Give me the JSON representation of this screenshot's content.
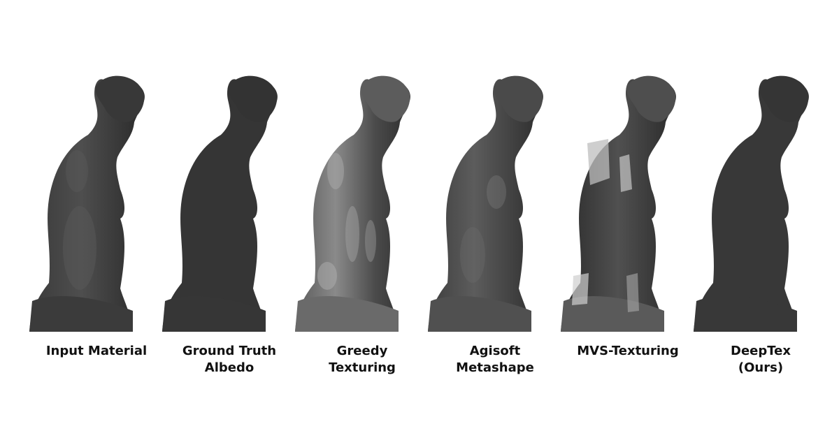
{
  "figure": {
    "panels": [
      {
        "caption_line1": "Input Material",
        "caption_line2": "",
        "style": "smooth-shaded"
      },
      {
        "caption_line1": "Ground Truth",
        "caption_line2": "Albedo",
        "style": "flat-albedo"
      },
      {
        "caption_line1": "Greedy",
        "caption_line2": "Texturing",
        "style": "baked-highlights"
      },
      {
        "caption_line1": "Agisoft",
        "caption_line2": "Metashape",
        "style": "soft-shading"
      },
      {
        "caption_line1": "MVS-Texturing",
        "caption_line2": "",
        "style": "seams-artifacts"
      },
      {
        "caption_line1": "DeepTex",
        "caption_line2": "(Ours)",
        "style": "flat-albedo"
      }
    ],
    "colors": {
      "background": "#ffffff",
      "statue_dark": "#2a2a2a",
      "statue_mid": "#474747",
      "statue_light": "#8a8a8a",
      "caption": "#111111"
    }
  }
}
